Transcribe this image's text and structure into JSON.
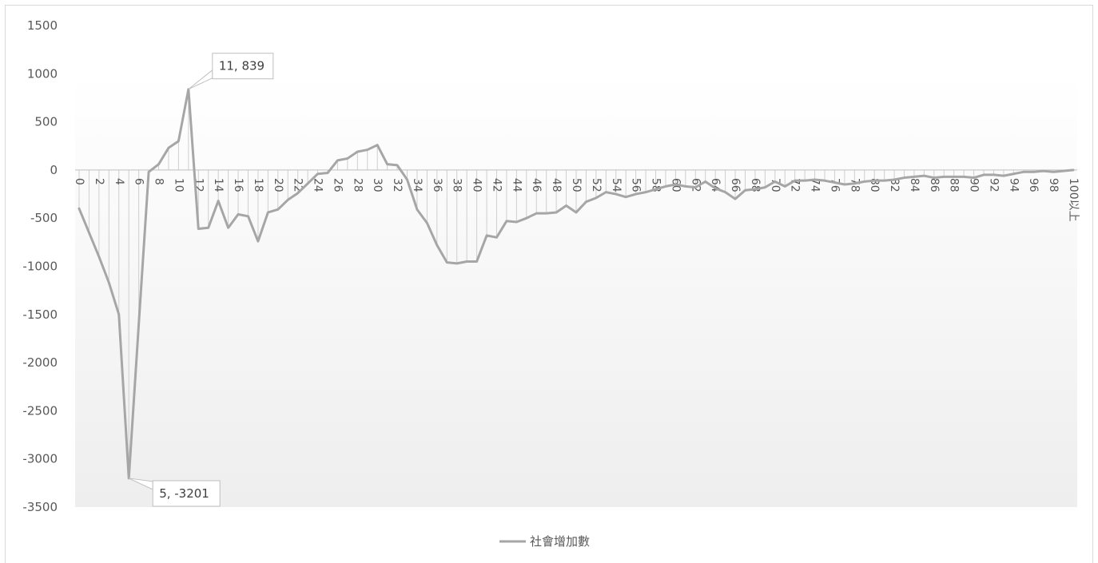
{
  "chart_data": {
    "type": "line",
    "title": "",
    "xlabel": "",
    "ylabel": "",
    "ylim": [
      -3500,
      1500
    ],
    "yticks": [
      1500,
      1000,
      500,
      0,
      -500,
      -1000,
      -1500,
      -2000,
      -2500,
      -3000,
      -3500
    ],
    "categories": [
      "0",
      "1",
      "2",
      "3",
      "4",
      "5",
      "6",
      "7",
      "8",
      "9",
      "10",
      "11",
      "12",
      "13",
      "14",
      "15",
      "16",
      "17",
      "18",
      "19",
      "20",
      "21",
      "22",
      "23",
      "24",
      "25",
      "26",
      "27",
      "28",
      "29",
      "30",
      "31",
      "32",
      "33",
      "34",
      "35",
      "36",
      "37",
      "38",
      "39",
      "40",
      "41",
      "42",
      "43",
      "44",
      "45",
      "46",
      "47",
      "48",
      "49",
      "50",
      "51",
      "52",
      "53",
      "54",
      "55",
      "56",
      "57",
      "58",
      "59",
      "60",
      "61",
      "62",
      "63",
      "64",
      "65",
      "66",
      "67",
      "68",
      "69",
      "70",
      "71",
      "72",
      "73",
      "74",
      "75",
      "76",
      "77",
      "78",
      "79",
      "80",
      "81",
      "82",
      "83",
      "84",
      "85",
      "86",
      "87",
      "88",
      "89",
      "90",
      "91",
      "92",
      "93",
      "94",
      "95",
      "96",
      "97",
      "98",
      "99",
      "100以上"
    ],
    "tick_labels": [
      "0",
      "2",
      "4",
      "6",
      "8",
      "10",
      "12",
      "14",
      "16",
      "18",
      "20",
      "22",
      "24",
      "26",
      "28",
      "30",
      "32",
      "34",
      "36",
      "38",
      "40",
      "42",
      "44",
      "46",
      "48",
      "50",
      "52",
      "54",
      "56",
      "58",
      "60",
      "62",
      "64",
      "66",
      "68",
      "70",
      "72",
      "74",
      "76",
      "78",
      "80",
      "82",
      "84",
      "86",
      "88",
      "90",
      "92",
      "94",
      "96",
      "98",
      "100以上"
    ],
    "series": [
      {
        "name": "社會增加數",
        "color": "#a6a6a6",
        "values": [
          -400,
          -650,
          -900,
          -1170,
          -1500,
          -3201,
          -1600,
          -20,
          60,
          230,
          300,
          839,
          -610,
          -600,
          -320,
          -600,
          -460,
          -480,
          -740,
          -440,
          -410,
          -310,
          -240,
          -140,
          -40,
          -30,
          100,
          120,
          190,
          210,
          260,
          60,
          50,
          -100,
          -410,
          -550,
          -780,
          -960,
          -970,
          -950,
          -950,
          -680,
          -700,
          -530,
          -540,
          -500,
          -450,
          -450,
          -440,
          -370,
          -440,
          -330,
          -290,
          -230,
          -250,
          -280,
          -250,
          -230,
          -200,
          -170,
          -150,
          -170,
          -180,
          -120,
          -190,
          -230,
          -300,
          -210,
          -200,
          -180,
          -120,
          -170,
          -110,
          -110,
          -100,
          -110,
          -130,
          -150,
          -140,
          -120,
          -110,
          -110,
          -100,
          -80,
          -70,
          -60,
          -80,
          -70,
          -70,
          -70,
          -80,
          -50,
          -50,
          -60,
          -40,
          -20,
          -20,
          -10,
          -20,
          -10,
          0
        ]
      }
    ],
    "annotations": [
      {
        "text": "11, 839",
        "x": "11",
        "y": 839
      },
      {
        "text": "5, -3201",
        "x": "5",
        "y": -3201
      }
    ],
    "grid": false,
    "drop_lines": true,
    "legend": "bottom"
  }
}
